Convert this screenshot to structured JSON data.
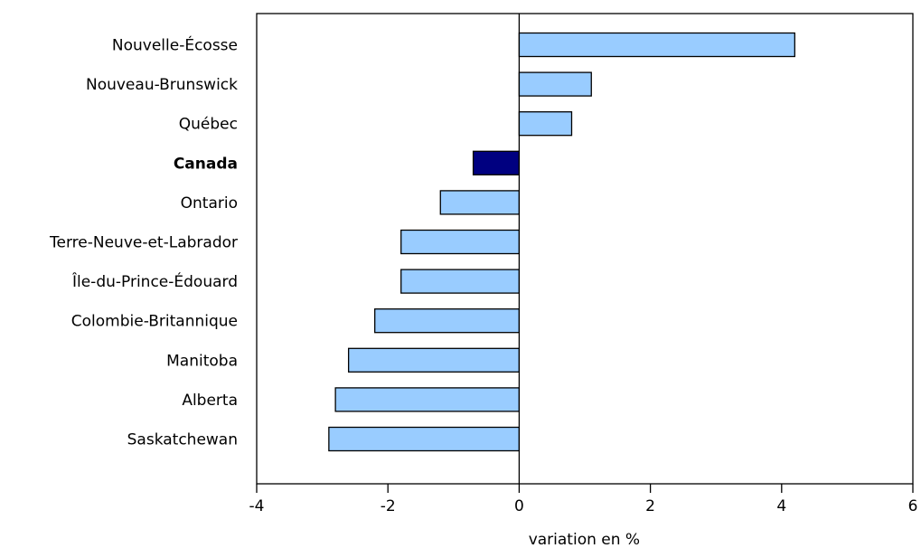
{
  "chart_data": {
    "type": "bar",
    "orientation": "horizontal",
    "categories": [
      "Nouvelle-Écosse",
      "Nouveau-Brunswick",
      "Québec",
      "Canada",
      "Ontario",
      "Terre-Neuve-et-Labrador",
      "Île-du-Prince-Édouard",
      "Colombie-Britannique",
      "Manitoba",
      "Alberta",
      "Saskatchewan"
    ],
    "values": [
      4.2,
      1.1,
      0.8,
      -0.7,
      -1.2,
      -1.8,
      -1.8,
      -2.2,
      -2.6,
      -2.8,
      -2.9
    ],
    "highlight_category": "Canada",
    "xlabel": "variation en %",
    "ylabel": "",
    "title": "",
    "xlim": [
      -4,
      6
    ],
    "xticks": [
      -4,
      -2,
      0,
      2,
      4,
      6
    ],
    "grid": false,
    "legend": "none",
    "colors": {
      "bar": "#99ccff",
      "highlight": "#000080",
      "outline": "#000000"
    }
  }
}
